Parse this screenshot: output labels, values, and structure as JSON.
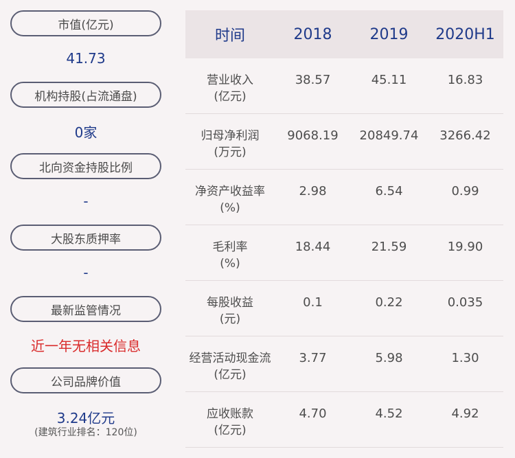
{
  "left": {
    "items": [
      {
        "label": "市值(亿元)",
        "value": "41.73"
      },
      {
        "label": "机构持股(占流通盘)",
        "value": "0家"
      },
      {
        "label": "北向资金持股比例",
        "value": "-"
      },
      {
        "label": "大股东质押率",
        "value": "-"
      },
      {
        "label": "最新监管情况",
        "value": "近一年无相关信息"
      },
      {
        "label": "公司品牌价值",
        "value": "3.24亿元",
        "note": "(建筑行业排名：120位)"
      }
    ]
  },
  "table": {
    "headers": [
      "时间",
      "2018",
      "2019",
      "2020H1"
    ],
    "rows": [
      {
        "label1": "营业收入",
        "label2": "(亿元)",
        "v": [
          "38.57",
          "45.11",
          "16.83"
        ]
      },
      {
        "label1": "归母净利润",
        "label2": "(万元)",
        "v": [
          "9068.19",
          "20849.74",
          "3266.42"
        ]
      },
      {
        "label1": "净资产收益率",
        "label2": "(%)",
        "v": [
          "2.98",
          "6.54",
          "0.99"
        ]
      },
      {
        "label1": "毛利率",
        "label2": "(%)",
        "v": [
          "18.44",
          "21.59",
          "19.90"
        ]
      },
      {
        "label1": "每股收益",
        "label2": "(元)",
        "v": [
          "0.1",
          "0.22",
          "0.035"
        ]
      },
      {
        "label1": "经营活动现金流",
        "label2": "(亿元)",
        "v": [
          "3.77",
          "5.98",
          "1.30"
        ]
      },
      {
        "label1": "应收账款",
        "label2": "(亿元)",
        "v": [
          "4.70",
          "4.52",
          "4.92"
        ]
      }
    ]
  },
  "colors": {
    "background": "#f7f3f4",
    "header_bg": "#ebe4e6",
    "value_blue": "#1f3a8a",
    "alert_red": "#d92b2b",
    "pill_border": "#5a5d73"
  }
}
